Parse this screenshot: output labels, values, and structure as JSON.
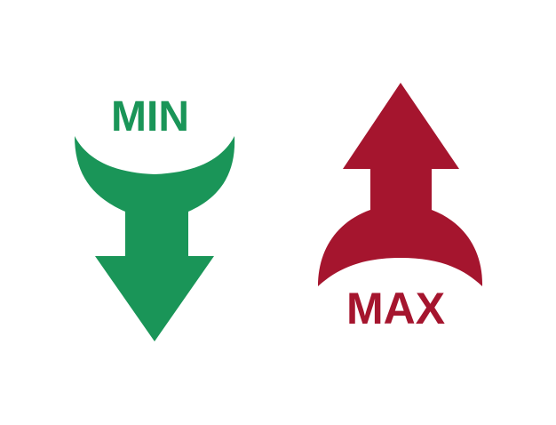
{
  "min_indicator": {
    "label": "MIN",
    "color": "#1a9558",
    "icon": "down-arrow-icon"
  },
  "max_indicator": {
    "label": "MAX",
    "color": "#a5152e",
    "icon": "up-arrow-icon"
  },
  "background_color": "#ffffff"
}
